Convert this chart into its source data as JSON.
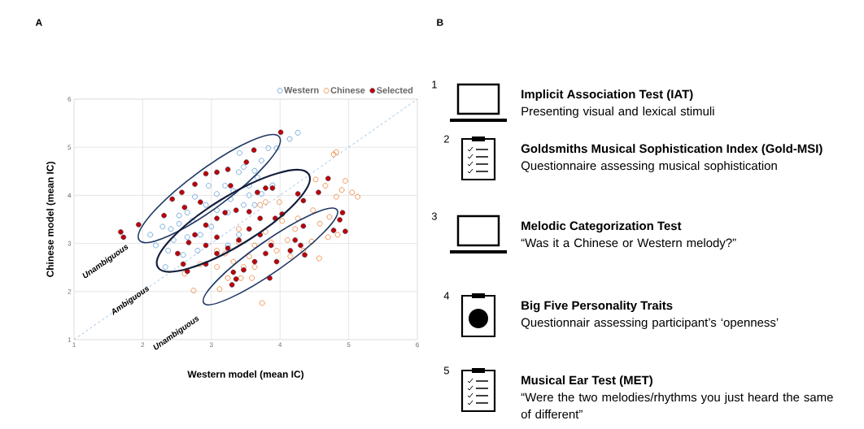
{
  "chart_data": [
    {
      "type": "scatter",
      "title": "A",
      "xlabel": "Western model (mean IC)",
      "ylabel": "Chinese model (mean IC)",
      "xlim": [
        1,
        6
      ],
      "ylim": [
        1,
        6
      ],
      "xticks": [
        1,
        2,
        3,
        4,
        5,
        6
      ],
      "yticks": [
        1,
        2,
        3,
        4,
        5,
        6
      ],
      "grid": true,
      "legend": "top right",
      "marker": "circle",
      "annotations": [
        "Unambiguous",
        "Ambiguous",
        "Unambiguous"
      ],
      "series": [
        {
          "name": "Western",
          "color": "#5b9bd5",
          "x": [
            4.26,
            4.14,
            3.83,
            3.95,
            3.41,
            3.73,
            3.47,
            3.4,
            3.63,
            3.89,
            3.73,
            3.55,
            3.32,
            3.2,
            3.08,
            2.92,
            2.76,
            2.65,
            2.53,
            2.41,
            2.29,
            2.11,
            2.19,
            2.37,
            2.33,
            2.59,
            2.8,
            3.24,
            3.4,
            3.47,
            3.63,
            3.0,
            2.84,
            2.72,
            3.08,
            3.28,
            2.96,
            3.24,
            2.65,
            2.45,
            2.53,
            3.55,
            3.67
          ],
          "values": [
            5.3,
            5.17,
            4.98,
            4.98,
            4.88,
            4.72,
            4.59,
            4.48,
            4.51,
            4.21,
            4.03,
            4.0,
            4.09,
            4.2,
            4.03,
            3.8,
            3.97,
            3.64,
            3.58,
            3.3,
            3.35,
            3.18,
            2.96,
            2.85,
            2.51,
            2.76,
            2.85,
            2.96,
            3.18,
            3.8,
            3.8,
            3.35,
            3.18,
            3.47,
            3.69,
            3.92,
            4.2,
            3.64,
            3.13,
            3.07,
            3.41,
            4.2,
            4.37
          ]
        },
        {
          "name": "Chinese",
          "color": "#ed7d31",
          "x": [
            4.82,
            4.78,
            4.52,
            4.66,
            4.95,
            5.05,
            5.13,
            4.82,
            4.9,
            4.48,
            4.72,
            4.58,
            4.7,
            4.84,
            4.46,
            4.57,
            3.74,
            2.74,
            3.12,
            2.61,
            2.84,
            3.08,
            3.32,
            3.55,
            3.63,
            3.87,
            3.95,
            4.11,
            4.22,
            4.26,
            4.03,
            3.79,
            3.71,
            3.79,
            3.99,
            4.15,
            3.24,
            3.43,
            3.59,
            3.2,
            3.4,
            3.63,
            3.47,
            4.34,
            3.4,
            3.08
          ],
          "values": [
            4.9,
            4.85,
            4.33,
            4.2,
            4.3,
            4.06,
            3.97,
            3.97,
            4.11,
            3.69,
            3.55,
            3.41,
            3.13,
            3.18,
            3.04,
            2.69,
            1.76,
            2.02,
            2.05,
            2.37,
            2.57,
            2.51,
            2.62,
            2.73,
            2.96,
            3.02,
            2.85,
            3.07,
            3.3,
            3.52,
            3.47,
            3.24,
            3.8,
            3.86,
            3.86,
            2.73,
            2.28,
            2.28,
            2.28,
            2.79,
            3.02,
            2.51,
            2.51,
            2.85,
            3.3,
            2.85
          ]
        },
        {
          "name": "Selected",
          "color": "#c00000",
          "x": [
            4.01,
            3.62,
            3.51,
            3.24,
            3.08,
            2.92,
            2.76,
            2.57,
            2.43,
            2.31,
            1.94,
            1.68,
            1.72,
            2.61,
            2.84,
            3.28,
            3.67,
            3.79,
            3.89,
            4.26,
            4.56,
            4.7,
            4.34,
            4.34,
            4.91,
            4.87,
            4.95,
            4.78,
            4.36,
            4.3,
            4.22,
            4.03,
            3.93,
            3.71,
            3.55,
            3.36,
            3.2,
            3.08,
            2.92,
            2.76,
            2.67,
            2.51,
            2.65,
            2.59,
            2.92,
            3.08,
            3.24,
            3.4,
            3.55,
            3.71,
            3.87,
            3.79,
            3.63,
            3.47,
            3.32,
            3.3,
            3.36,
            3.85,
            3.95,
            4.15,
            3.08,
            2.92
          ],
          "values": [
            5.31,
            4.94,
            4.69,
            4.54,
            4.48,
            4.45,
            4.23,
            4.06,
            3.92,
            3.58,
            3.39,
            3.24,
            3.13,
            3.75,
            3.86,
            4.2,
            4.06,
            4.15,
            4.15,
            4.03,
            4.06,
            4.35,
            3.89,
            3.36,
            3.64,
            3.49,
            3.25,
            3.27,
            2.76,
            2.96,
            3.07,
            3.61,
            3.52,
            3.52,
            3.66,
            3.69,
            3.64,
            3.52,
            3.38,
            3.18,
            3.02,
            2.79,
            2.42,
            2.57,
            2.57,
            2.79,
            2.9,
            3.07,
            3.3,
            3.18,
            2.96,
            2.79,
            2.62,
            2.45,
            2.4,
            2.14,
            2.26,
            2.28,
            2.62,
            2.85,
            3.13,
            2.96
          ]
        },
        {
          "type": "line",
          "color": "#5b9bd5",
          "line_style": "dashed",
          "marker": "none",
          "x": [
            1,
            6
          ],
          "values": [
            1,
            6
          ]
        }
      ]
    },
    {
      "type": "other",
      "title": "B",
      "annotations": [
        "1",
        "Implicit Association Test (IAT)",
        "Presenting visual and lexical stimuli",
        "2",
        "Goldsmiths Musical Sophistication Index (Gold-MSI)",
        "Questionnaire assessing musical sophistication",
        "3",
        "Melodic Categorization Test",
        "“Was it a Chinese or Western melody?”",
        "4",
        "Big Five Personality Traits",
        "Questionnair assessing participant’s ‘openness’",
        "5",
        "Musical Ear Test (MET)",
        "“Were the two melodies/rhythms you just heard the same of different”"
      ]
    }
  ]
}
